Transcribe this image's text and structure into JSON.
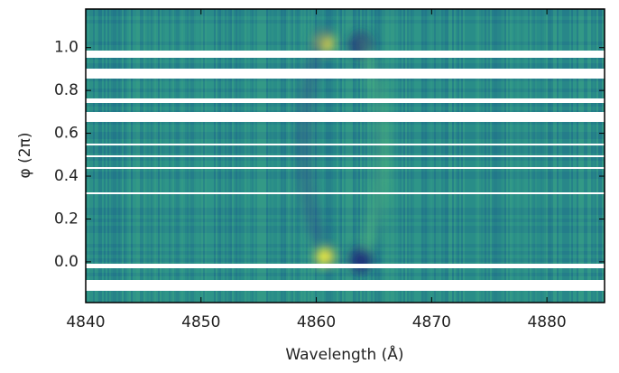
{
  "chart_data": {
    "type": "image",
    "x_label": "Wavelength (Å)",
    "y_label": "φ (2π)",
    "xlim": [
      4840,
      4885
    ],
    "xticks": [
      4840,
      4850,
      4860,
      4870,
      4880
    ],
    "ylim": [
      -0.19,
      1.18
    ],
    "yticks": [
      {
        "value": 0,
        "label": "0.0"
      },
      0.2,
      0.4,
      0.6,
      0.8,
      {
        "value": 1,
        "label": "1.0"
      }
    ]
  }
}
